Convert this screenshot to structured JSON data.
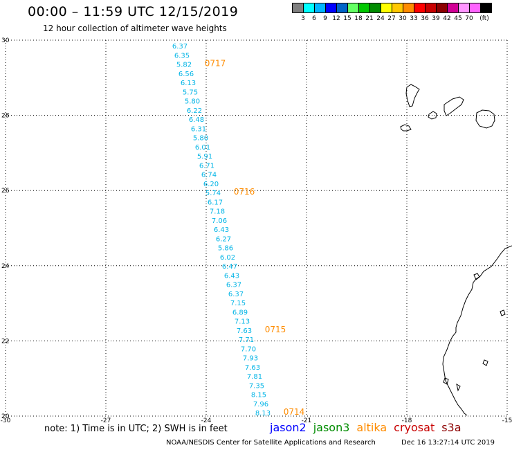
{
  "header": {
    "title": "00:00 – 11:59 UTC 12/15/2019",
    "subtitle": "12 hour collection of altimeter wave heights"
  },
  "color_scale": {
    "colors": [
      "#808080",
      "#00ffff",
      "#00b4ff",
      "#0000ff",
      "#0064c8",
      "#64ff64",
      "#00c800",
      "#008c00",
      "#ffff00",
      "#ffc800",
      "#ff8c00",
      "#ff0000",
      "#c80000",
      "#8c0000",
      "#d20096",
      "#ff96ff",
      "#ff64ff",
      "#000000"
    ],
    "labels": [
      "3",
      "6",
      "9",
      "12",
      "15",
      "18",
      "21",
      "24",
      "27",
      "30",
      "33",
      "36",
      "39",
      "42",
      "45",
      "70",
      "(ft)"
    ]
  },
  "chart_data": {
    "type": "scatter",
    "title": "12 hour collection of altimeter wave heights",
    "xlim": [
      -30,
      -15
    ],
    "ylim": [
      20,
      30
    ],
    "x_ticks": [
      "-30",
      "-27",
      "-24",
      "-21",
      "-18",
      "-15"
    ],
    "y_ticks": [
      "20",
      "22",
      "24",
      "26",
      "28",
      "30"
    ],
    "grid": true,
    "swh_color": "#00b4e6",
    "time_color": "#ff8c00",
    "swh_values": [
      "6.37",
      "6.35",
      "5.82",
      "6.56",
      "6.13",
      "5.75",
      "5.80",
      "6.22",
      "6.48",
      "6.31",
      "5.80",
      "6.01",
      "5.91",
      "6.71",
      "6.74",
      "6.20",
      "5.74",
      "6.17",
      "7.18",
      "7.06",
      "6.43",
      "6.27",
      "5.86",
      "6.02",
      "6.47",
      "6.43",
      "6.37",
      "6.37",
      "7.15",
      "6.89",
      "7.13",
      "7.63",
      "7.71",
      "7.70",
      "7.93",
      "7.63",
      "7.81",
      "7.35",
      "8.15",
      "7.96",
      "8.13"
    ],
    "time_labels": [
      {
        "text": "0717",
        "after_index": 2
      },
      {
        "text": "0716",
        "after_index": 16
      },
      {
        "text": "0715",
        "after_index": 31
      },
      {
        "text": "0714",
        "after_index": 40
      }
    ]
  },
  "footer": {
    "note": "note: 1) Time is in UTC; 2) SWH is in feet",
    "satellites": [
      {
        "name": "jason2",
        "color": "#0000ff"
      },
      {
        "name": "jason3",
        "color": "#008c00"
      },
      {
        "name": "altika",
        "color": "#ff8c00"
      },
      {
        "name": "cryosat",
        "color": "#c80000"
      },
      {
        "name": "s3a",
        "color": "#8c0000"
      }
    ],
    "credit": "NOAA/NESDIS Center for Satellite Applications and Research",
    "timestamp": "Dec 16 13:27:14 UTC 2019"
  }
}
